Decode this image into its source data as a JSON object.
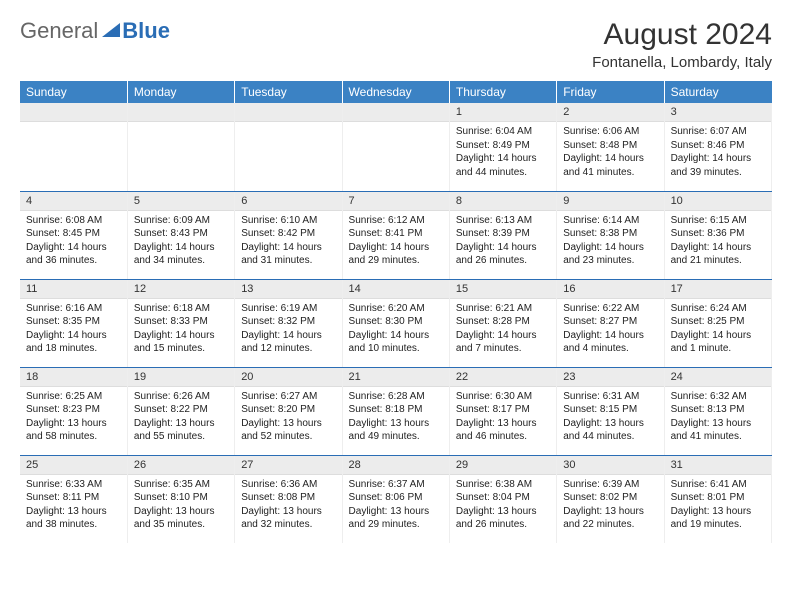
{
  "logo": {
    "general": "General",
    "blue": "Blue"
  },
  "title": "August 2024",
  "location": "Fontanella, Lombardy, Italy",
  "colors": {
    "header_bg": "#3b82c4",
    "header_text": "#ffffff",
    "accent": "#2a6db5",
    "daynum_bg": "#ececec",
    "text": "#222222"
  },
  "day_headers": [
    "Sunday",
    "Monday",
    "Tuesday",
    "Wednesday",
    "Thursday",
    "Friday",
    "Saturday"
  ],
  "weeks": [
    [
      null,
      null,
      null,
      null,
      {
        "num": "1",
        "sunrise": "6:04 AM",
        "sunset": "8:49 PM",
        "daylight": "14 hours and 44 minutes."
      },
      {
        "num": "2",
        "sunrise": "6:06 AM",
        "sunset": "8:48 PM",
        "daylight": "14 hours and 41 minutes."
      },
      {
        "num": "3",
        "sunrise": "6:07 AM",
        "sunset": "8:46 PM",
        "daylight": "14 hours and 39 minutes."
      }
    ],
    [
      {
        "num": "4",
        "sunrise": "6:08 AM",
        "sunset": "8:45 PM",
        "daylight": "14 hours and 36 minutes."
      },
      {
        "num": "5",
        "sunrise": "6:09 AM",
        "sunset": "8:43 PM",
        "daylight": "14 hours and 34 minutes."
      },
      {
        "num": "6",
        "sunrise": "6:10 AM",
        "sunset": "8:42 PM",
        "daylight": "14 hours and 31 minutes."
      },
      {
        "num": "7",
        "sunrise": "6:12 AM",
        "sunset": "8:41 PM",
        "daylight": "14 hours and 29 minutes."
      },
      {
        "num": "8",
        "sunrise": "6:13 AM",
        "sunset": "8:39 PM",
        "daylight": "14 hours and 26 minutes."
      },
      {
        "num": "9",
        "sunrise": "6:14 AM",
        "sunset": "8:38 PM",
        "daylight": "14 hours and 23 minutes."
      },
      {
        "num": "10",
        "sunrise": "6:15 AM",
        "sunset": "8:36 PM",
        "daylight": "14 hours and 21 minutes."
      }
    ],
    [
      {
        "num": "11",
        "sunrise": "6:16 AM",
        "sunset": "8:35 PM",
        "daylight": "14 hours and 18 minutes."
      },
      {
        "num": "12",
        "sunrise": "6:18 AM",
        "sunset": "8:33 PM",
        "daylight": "14 hours and 15 minutes."
      },
      {
        "num": "13",
        "sunrise": "6:19 AM",
        "sunset": "8:32 PM",
        "daylight": "14 hours and 12 minutes."
      },
      {
        "num": "14",
        "sunrise": "6:20 AM",
        "sunset": "8:30 PM",
        "daylight": "14 hours and 10 minutes."
      },
      {
        "num": "15",
        "sunrise": "6:21 AM",
        "sunset": "8:28 PM",
        "daylight": "14 hours and 7 minutes."
      },
      {
        "num": "16",
        "sunrise": "6:22 AM",
        "sunset": "8:27 PM",
        "daylight": "14 hours and 4 minutes."
      },
      {
        "num": "17",
        "sunrise": "6:24 AM",
        "sunset": "8:25 PM",
        "daylight": "14 hours and 1 minute."
      }
    ],
    [
      {
        "num": "18",
        "sunrise": "6:25 AM",
        "sunset": "8:23 PM",
        "daylight": "13 hours and 58 minutes."
      },
      {
        "num": "19",
        "sunrise": "6:26 AM",
        "sunset": "8:22 PM",
        "daylight": "13 hours and 55 minutes."
      },
      {
        "num": "20",
        "sunrise": "6:27 AM",
        "sunset": "8:20 PM",
        "daylight": "13 hours and 52 minutes."
      },
      {
        "num": "21",
        "sunrise": "6:28 AM",
        "sunset": "8:18 PM",
        "daylight": "13 hours and 49 minutes."
      },
      {
        "num": "22",
        "sunrise": "6:30 AM",
        "sunset": "8:17 PM",
        "daylight": "13 hours and 46 minutes."
      },
      {
        "num": "23",
        "sunrise": "6:31 AM",
        "sunset": "8:15 PM",
        "daylight": "13 hours and 44 minutes."
      },
      {
        "num": "24",
        "sunrise": "6:32 AM",
        "sunset": "8:13 PM",
        "daylight": "13 hours and 41 minutes."
      }
    ],
    [
      {
        "num": "25",
        "sunrise": "6:33 AM",
        "sunset": "8:11 PM",
        "daylight": "13 hours and 38 minutes."
      },
      {
        "num": "26",
        "sunrise": "6:35 AM",
        "sunset": "8:10 PM",
        "daylight": "13 hours and 35 minutes."
      },
      {
        "num": "27",
        "sunrise": "6:36 AM",
        "sunset": "8:08 PM",
        "daylight": "13 hours and 32 minutes."
      },
      {
        "num": "28",
        "sunrise": "6:37 AM",
        "sunset": "8:06 PM",
        "daylight": "13 hours and 29 minutes."
      },
      {
        "num": "29",
        "sunrise": "6:38 AM",
        "sunset": "8:04 PM",
        "daylight": "13 hours and 26 minutes."
      },
      {
        "num": "30",
        "sunrise": "6:39 AM",
        "sunset": "8:02 PM",
        "daylight": "13 hours and 22 minutes."
      },
      {
        "num": "31",
        "sunrise": "6:41 AM",
        "sunset": "8:01 PM",
        "daylight": "13 hours and 19 minutes."
      }
    ]
  ],
  "labels": {
    "sunrise": "Sunrise:",
    "sunset": "Sunset:",
    "daylight": "Daylight:"
  }
}
